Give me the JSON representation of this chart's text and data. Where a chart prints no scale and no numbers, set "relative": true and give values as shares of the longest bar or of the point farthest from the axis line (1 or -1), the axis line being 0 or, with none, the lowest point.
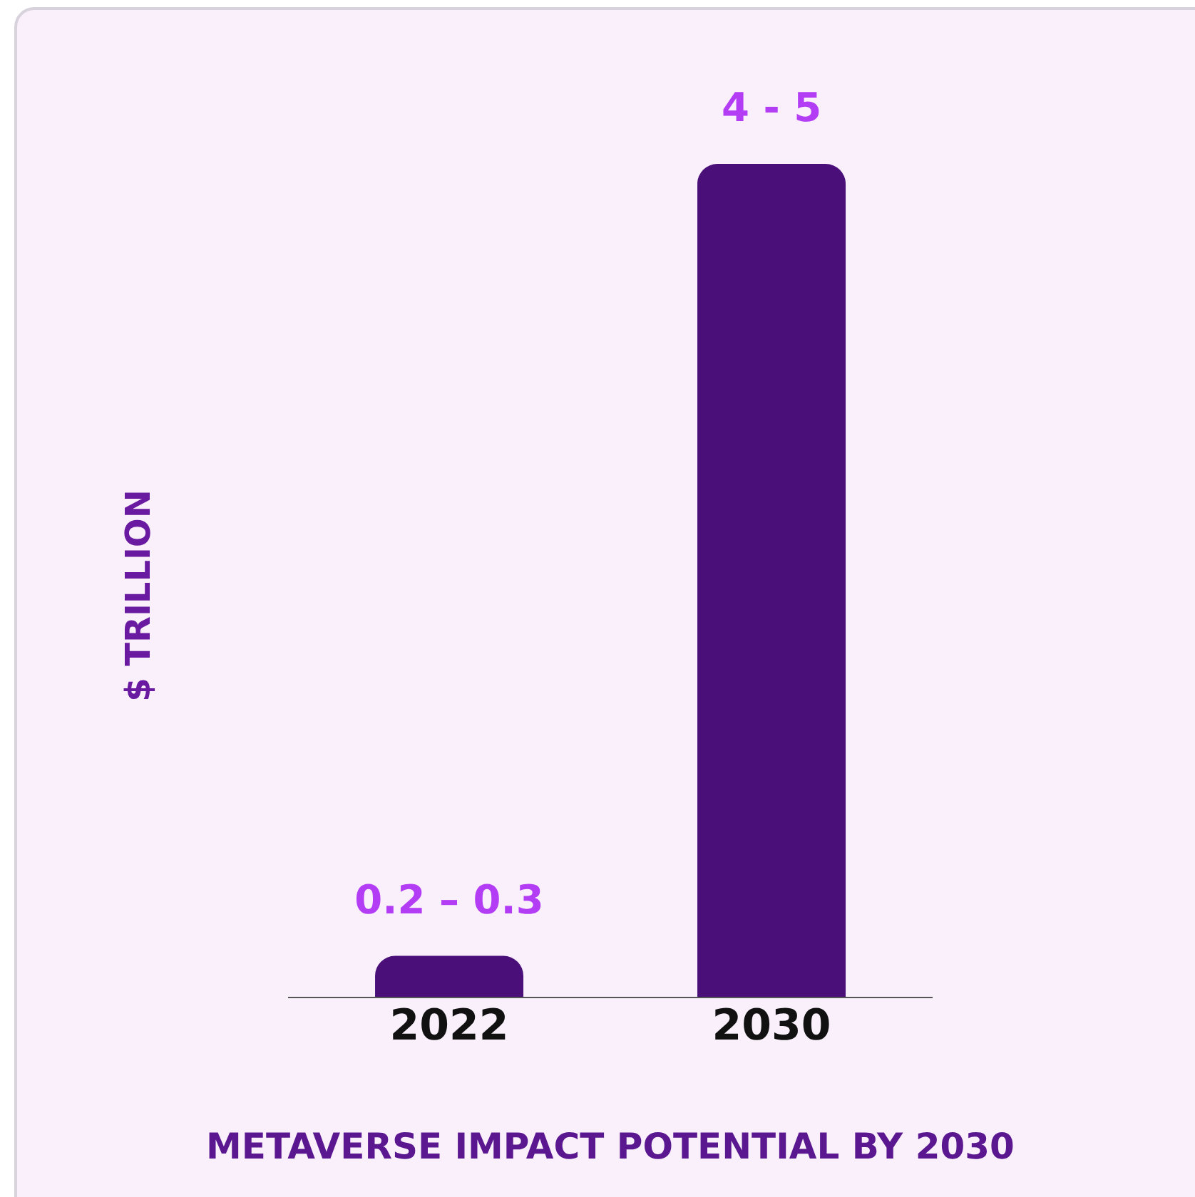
{
  "chart_data": {
    "type": "bar",
    "title": "METAVERSE IMPACT POTENTIAL BY 2030",
    "ylabel": "$ TRILLION",
    "categories": [
      "2022",
      "2030"
    ],
    "relative": true,
    "values": [
      0.05,
      1
    ],
    "annotations": [
      "0.2 – 0.3",
      "4 - 5"
    ],
    "color": "#4a0f78"
  }
}
